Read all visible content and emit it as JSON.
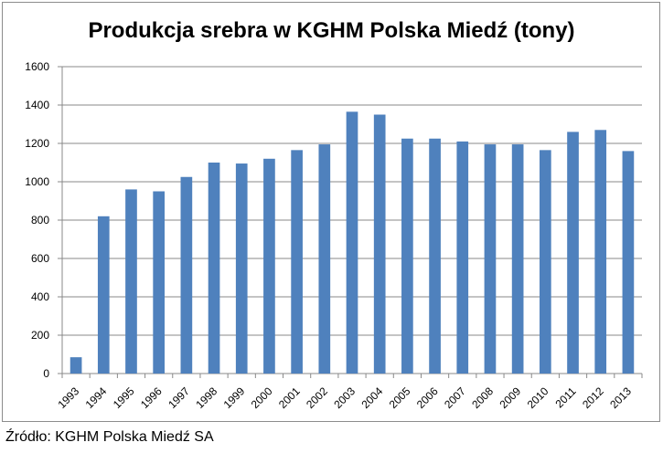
{
  "chart_data": {
    "type": "bar",
    "title": "Produkcja srebra w KGHM  Polska Miedź (tony)",
    "xlabel": "",
    "ylabel": "",
    "categories": [
      "1993",
      "1994",
      "1995",
      "1996",
      "1997",
      "1998",
      "1999",
      "2000",
      "2001",
      "2002",
      "2003",
      "2004",
      "2005",
      "2006",
      "2007",
      "2008",
      "2009",
      "2010",
      "2011",
      "2012",
      "2013"
    ],
    "values": [
      85,
      820,
      960,
      950,
      1025,
      1100,
      1095,
      1120,
      1165,
      1195,
      1365,
      1350,
      1225,
      1225,
      1210,
      1195,
      1195,
      1165,
      1260,
      1270,
      1160
    ],
    "ylim": [
      0,
      1600
    ],
    "yticks": [
      0,
      200,
      400,
      600,
      800,
      1000,
      1200,
      1400,
      1600
    ],
    "grid": true,
    "bar_color": "#4f81bd",
    "grid_color": "#898989"
  },
  "source": "Źródło: KGHM Polska Miedź SA"
}
